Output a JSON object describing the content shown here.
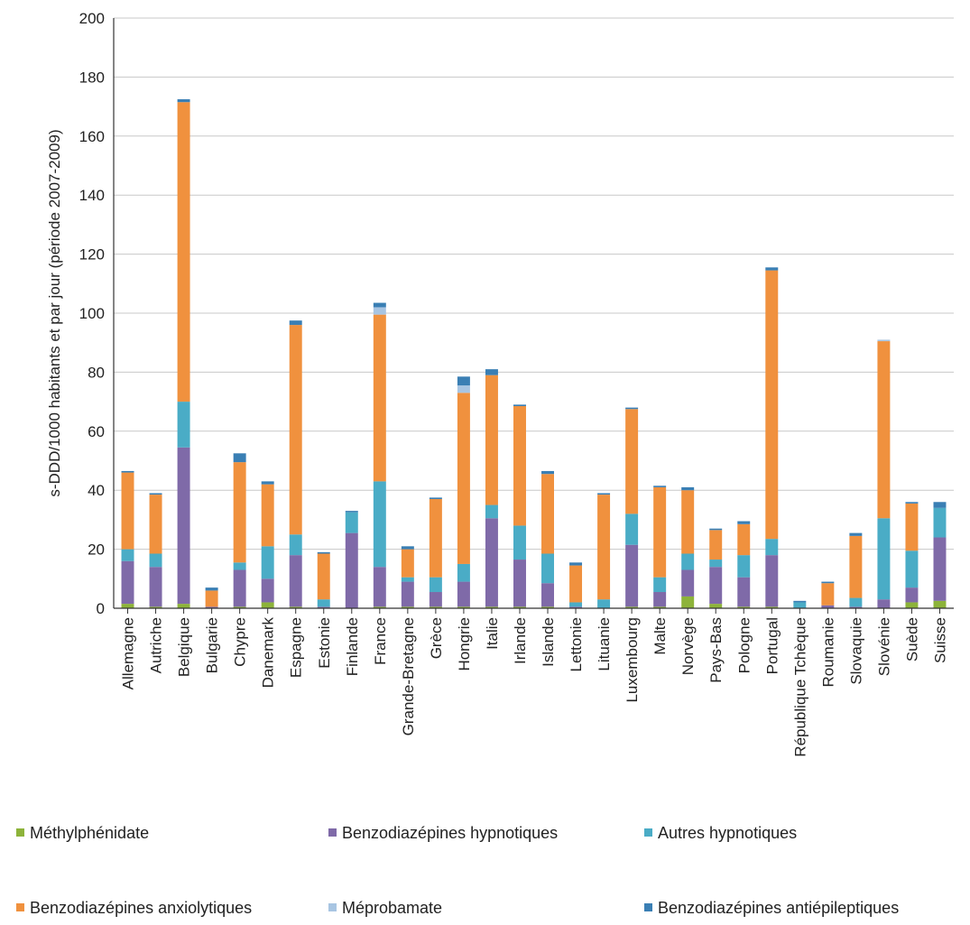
{
  "chart_data": {
    "type": "bar",
    "stacked": true,
    "ylabel": "s-DDD/1000 habitants et par jour (période 2007-2009)",
    "ylim": [
      0,
      200
    ],
    "yticks": [
      0,
      20,
      40,
      60,
      80,
      100,
      120,
      140,
      160,
      180,
      200
    ],
    "grid": true,
    "legend_position": "bottom",
    "categories": [
      "Allemagne",
      "Autriche",
      "Belgique",
      "Bulgarie",
      "Chypre",
      "Danemark",
      "Espagne",
      "Estonie",
      "Finlande",
      "France",
      "Grande-Bretagne",
      "Grèce",
      "Hongrie",
      "Italie",
      "Irlande",
      "Islande",
      "Lettonie",
      "Lituanie",
      "Luxembourg",
      "Malte",
      "Norvège",
      "Pays-Bas",
      "Pologne",
      "Portugal",
      "République Tchèque",
      "Roumanie",
      "Slovaquie",
      "Slovénie",
      "Suède",
      "Suisse"
    ],
    "series": [
      {
        "name": "Méthylphénidate",
        "color": "#8db33a",
        "values": [
          1.5,
          0.5,
          1.5,
          0,
          0.5,
          2,
          0.5,
          0,
          0,
          0.5,
          0.5,
          0.5,
          0.5,
          0.5,
          0.5,
          0.5,
          0,
          0,
          0.5,
          0.5,
          4,
          1.5,
          0.5,
          0.5,
          0,
          0,
          0,
          0,
          2,
          2.5
        ]
      },
      {
        "name": "Benzodiazépines hypnotiques",
        "color": "#7f6aa8",
        "values": [
          14.5,
          13.5,
          53,
          0.5,
          12.5,
          8,
          17.5,
          0.5,
          25.5,
          13.5,
          8.5,
          5,
          8.5,
          30,
          16,
          8,
          0.5,
          0,
          21,
          5,
          9,
          12.5,
          10,
          17.5,
          0,
          1,
          0.5,
          3,
          5,
          21.5
        ]
      },
      {
        "name": "Autres hypnotiques",
        "color": "#4aacc6",
        "values": [
          4,
          4.5,
          15.5,
          0,
          2.5,
          11,
          7,
          2.5,
          7,
          29,
          1.5,
          5,
          6,
          4.5,
          11.5,
          10,
          1.5,
          3,
          10.5,
          5,
          5.5,
          2.5,
          7.5,
          5.5,
          2,
          0,
          3,
          27.5,
          12.5,
          10
        ]
      },
      {
        "name": "Benzodiazépines anxiolytiques",
        "color": "#f0913e",
        "values": [
          26,
          20,
          101.5,
          5.5,
          34,
          21,
          71,
          15.5,
          0,
          56.5,
          9.5,
          26.5,
          58,
          44,
          40.5,
          27,
          12.5,
          35.5,
          35.5,
          30.5,
          21.5,
          10,
          10.5,
          91,
          0,
          7.5,
          21,
          60,
          16,
          0
        ]
      },
      {
        "name": "Méprobamate",
        "color": "#a8c5e2",
        "values": [
          0,
          0,
          0,
          0,
          0,
          0,
          0,
          0,
          0,
          2.5,
          0,
          0,
          2.5,
          0,
          0,
          0,
          0,
          0,
          0,
          0,
          0,
          0,
          0,
          0,
          0,
          0,
          0,
          0.5,
          0,
          0
        ]
      },
      {
        "name": "Benzodiazépines antiépileptiques",
        "color": "#3a7fb4",
        "values": [
          0.5,
          0.5,
          1,
          1,
          3,
          1,
          1.5,
          0.5,
          0.5,
          1.5,
          1,
          0.5,
          3,
          2,
          0.5,
          1,
          1,
          0.5,
          0.5,
          0.5,
          1,
          0.5,
          1,
          1,
          0.5,
          0.5,
          1,
          0,
          0.5,
          2
        ]
      }
    ]
  }
}
